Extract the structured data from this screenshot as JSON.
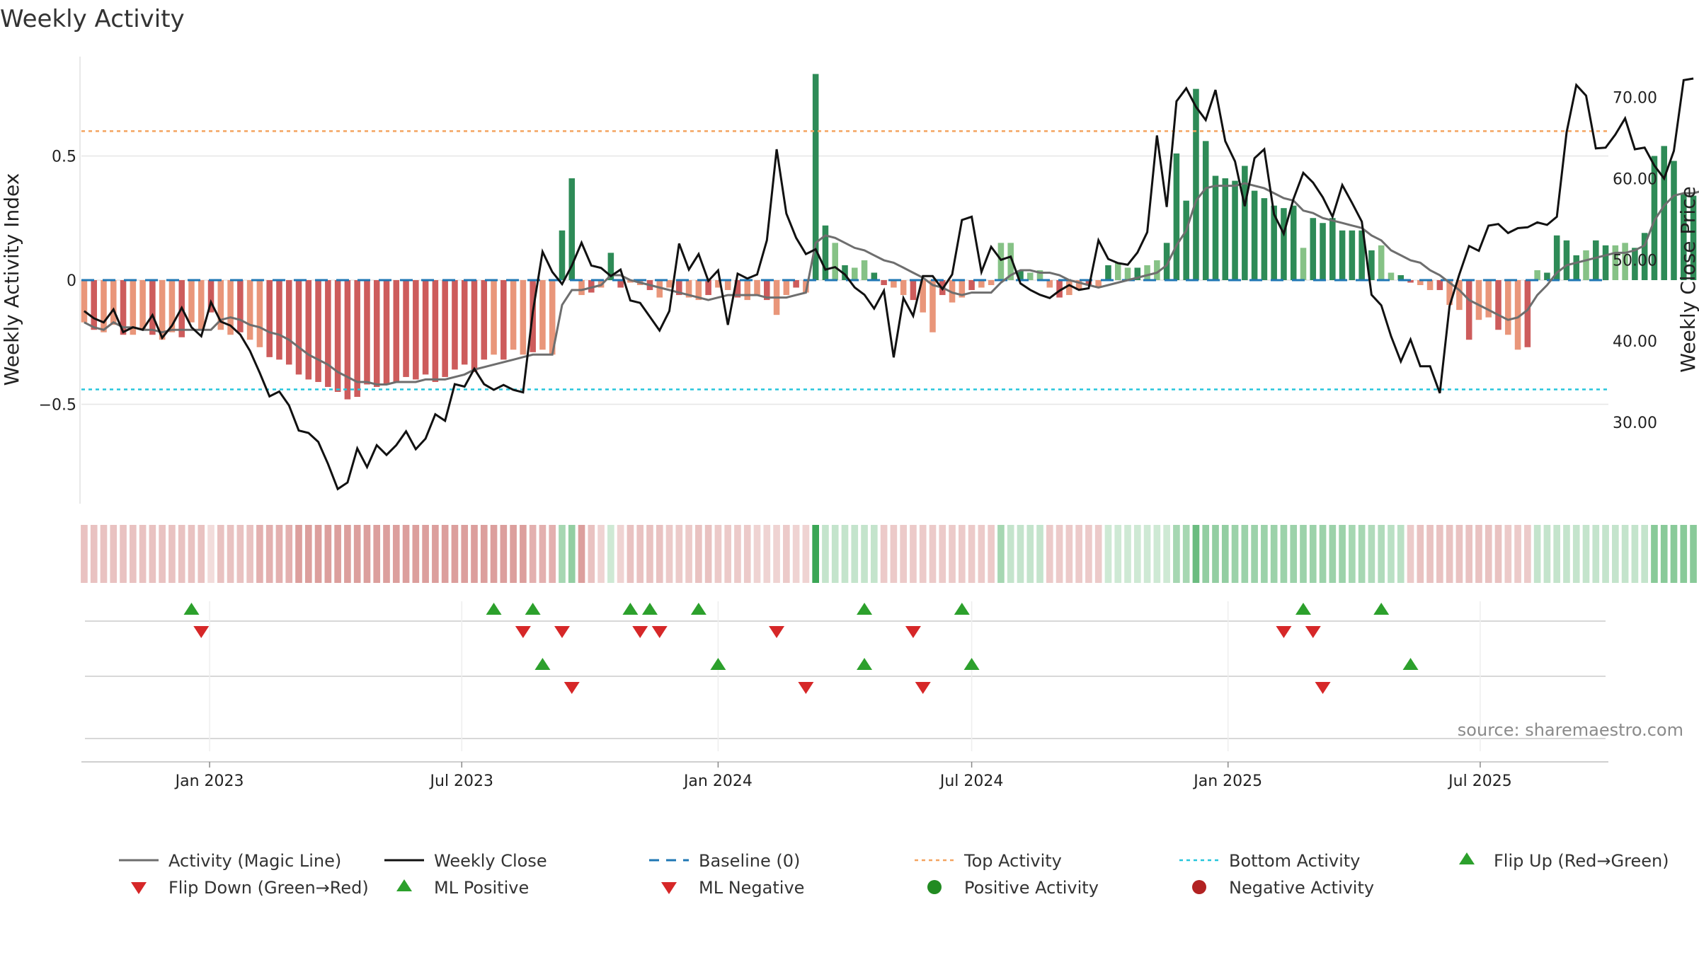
{
  "chart_data": {
    "type": "bar",
    "title": "Weekly Activity",
    "ylabel": "Weekly Activity Index",
    "y2label": "Weekly Close Price",
    "source": "source: sharemaestro.com",
    "ylim": [
      -0.9,
      0.9
    ],
    "y2lim": [
      20,
      75
    ],
    "yticks": [
      {
        "v": 0.5,
        "label": "0.5"
      },
      {
        "v": 0,
        "label": "0"
      },
      {
        "v": -0.5,
        "label": "−0.5"
      }
    ],
    "y2ticks": [
      {
        "v": 70,
        "label": "70.00"
      },
      {
        "v": 60,
        "label": "60.00"
      },
      {
        "v": 50,
        "label": "50.00"
      },
      {
        "v": 40,
        "label": "40.00"
      },
      {
        "v": 30,
        "label": "30.00"
      }
    ],
    "x_start": "2022-10-01",
    "x_end": "2025-10-01",
    "x_ticks": [
      {
        "date": "2023-01-01",
        "label": "Jan 2023"
      },
      {
        "date": "2023-07-01",
        "label": "Jul 2023"
      },
      {
        "date": "2024-01-01",
        "label": "Jan 2024"
      },
      {
        "date": "2024-07-01",
        "label": "Jul 2024"
      },
      {
        "date": "2025-01-01",
        "label": "Jan 2025"
      },
      {
        "date": "2025-07-01",
        "label": "Jul 2025"
      }
    ],
    "first_week": "2022-10-03",
    "top_activity": 0.6,
    "bottom_activity": -0.44,
    "baseline": 0,
    "activity": [
      -0.17,
      -0.2,
      -0.21,
      -0.18,
      -0.22,
      -0.22,
      -0.2,
      -0.22,
      -0.24,
      -0.21,
      -0.23,
      -0.17,
      -0.2,
      -0.13,
      -0.2,
      -0.22,
      -0.21,
      -0.24,
      -0.27,
      -0.31,
      -0.32,
      -0.34,
      -0.38,
      -0.4,
      -0.41,
      -0.43,
      -0.45,
      -0.48,
      -0.47,
      -0.42,
      -0.43,
      -0.42,
      -0.41,
      -0.39,
      -0.4,
      -0.38,
      -0.41,
      -0.39,
      -0.36,
      -0.34,
      -0.37,
      -0.32,
      -0.3,
      -0.32,
      -0.28,
      -0.3,
      -0.29,
      -0.28,
      -0.3,
      0.2,
      0.41,
      -0.06,
      -0.05,
      -0.03,
      0.11,
      -0.03,
      -0.01,
      -0.02,
      -0.04,
      -0.07,
      -0.03,
      -0.06,
      -0.07,
      -0.08,
      -0.06,
      -0.03,
      -0.04,
      -0.07,
      -0.08,
      -0.06,
      -0.08,
      -0.14,
      -0.06,
      -0.03,
      -0.05,
      0.83,
      0.22,
      0.15,
      0.06,
      0.05,
      0.08,
      0.03,
      -0.02,
      -0.03,
      -0.06,
      -0.08,
      -0.13,
      -0.21,
      -0.06,
      -0.09,
      -0.07,
      -0.04,
      -0.03,
      -0.02,
      0.15,
      0.15,
      0.04,
      0.03,
      0.04,
      -0.03,
      -0.07,
      -0.06,
      -0.04,
      -0.02,
      -0.03,
      0.06,
      0.07,
      0.05,
      0.05,
      0.06,
      0.08,
      0.15,
      0.51,
      0.32,
      0.77,
      0.56,
      0.42,
      0.41,
      0.4,
      0.46,
      0.36,
      0.33,
      0.3,
      0.29,
      0.3,
      0.13,
      0.25,
      0.23,
      0.25,
      0.2,
      0.2,
      0.2,
      0.12,
      0.14,
      0.03,
      0.02,
      -0.01,
      -0.02,
      -0.04,
      -0.04,
      -0.1,
      -0.12,
      -0.24,
      -0.16,
      -0.15,
      -0.2,
      -0.22,
      -0.28,
      -0.27,
      0.04,
      0.03,
      0.18,
      0.16,
      0.1,
      0.12,
      0.16,
      0.14,
      0.14,
      0.15,
      0.13,
      0.19,
      0.5,
      0.54,
      0.48,
      0.35,
      0.34,
      0.36,
      0.42,
      0.36,
      0.34,
      0.22,
      0.28,
      0.44,
      0.45
    ],
    "magic_line": [
      -0.17,
      -0.19,
      -0.2,
      -0.17,
      -0.19,
      -0.19,
      -0.2,
      -0.2,
      -0.21,
      -0.2,
      -0.2,
      -0.2,
      -0.2,
      -0.2,
      -0.16,
      -0.15,
      -0.16,
      -0.18,
      -0.19,
      -0.21,
      -0.22,
      -0.24,
      -0.27,
      -0.3,
      -0.32,
      -0.34,
      -0.37,
      -0.39,
      -0.41,
      -0.41,
      -0.42,
      -0.42,
      -0.41,
      -0.41,
      -0.41,
      -0.4,
      -0.4,
      -0.4,
      -0.39,
      -0.38,
      -0.36,
      -0.35,
      -0.34,
      -0.33,
      -0.32,
      -0.31,
      -0.3,
      -0.3,
      -0.3,
      -0.1,
      -0.04,
      -0.04,
      -0.03,
      -0.02,
      0.02,
      0.02,
      0.0,
      -0.01,
      -0.02,
      -0.03,
      -0.04,
      -0.05,
      -0.06,
      -0.07,
      -0.08,
      -0.07,
      -0.06,
      -0.06,
      -0.06,
      -0.06,
      -0.07,
      -0.07,
      -0.07,
      -0.06,
      -0.05,
      0.15,
      0.18,
      0.17,
      0.15,
      0.13,
      0.12,
      0.1,
      0.08,
      0.07,
      0.05,
      0.03,
      0.01,
      -0.02,
      -0.03,
      -0.05,
      -0.06,
      -0.05,
      -0.05,
      -0.05,
      -0.01,
      0.02,
      0.04,
      0.04,
      0.03,
      0.03,
      0.02,
      0.0,
      -0.01,
      -0.02,
      -0.03,
      -0.02,
      -0.01,
      0.0,
      0.01,
      0.02,
      0.03,
      0.06,
      0.14,
      0.2,
      0.32,
      0.37,
      0.38,
      0.38,
      0.38,
      0.39,
      0.38,
      0.37,
      0.35,
      0.33,
      0.32,
      0.28,
      0.27,
      0.25,
      0.24,
      0.23,
      0.22,
      0.21,
      0.18,
      0.16,
      0.12,
      0.1,
      0.08,
      0.07,
      0.04,
      0.02,
      -0.01,
      -0.04,
      -0.08,
      -0.1,
      -0.12,
      -0.14,
      -0.16,
      -0.15,
      -0.12,
      -0.06,
      -0.02,
      0.03,
      0.06,
      0.07,
      0.08,
      0.09,
      0.1,
      0.11,
      0.11,
      0.12,
      0.14,
      0.24,
      0.3,
      0.34,
      0.35,
      0.35,
      0.36,
      0.36,
      0.36,
      0.35,
      0.34,
      0.33,
      0.33,
      0.36
    ],
    "weekly_close": [
      43.7,
      42.8,
      42.3,
      43.9,
      41.1,
      41.7,
      41.4,
      43.2,
      40.4,
      41.9,
      44.1,
      41.7,
      40.6,
      44.8,
      42.4,
      41.9,
      40.8,
      38.8,
      36.1,
      33.2,
      33.8,
      32.1,
      29.0,
      28.7,
      27.6,
      24.9,
      21.8,
      22.6,
      26.8,
      24.5,
      27.2,
      26.0,
      27.2,
      28.9,
      26.7,
      28.0,
      31.0,
      30.2,
      34.7,
      34.4,
      36.6,
      34.7,
      34.0,
      34.6,
      34.0,
      33.7,
      43.6,
      51.0,
      48.5,
      47.0,
      49.3,
      52.1,
      49.3,
      49.0,
      48.0,
      48.8,
      45.0,
      44.7,
      43.0,
      41.3,
      43.7,
      52.0,
      48.8,
      50.7,
      47.4,
      48.7,
      42.0,
      48.3,
      47.7,
      48.2,
      52.4,
      63.6,
      55.7,
      52.7,
      50.7,
      51.3,
      48.8,
      49.1,
      48.2,
      46.6,
      45.7,
      44.0,
      46.2,
      38.0,
      45.3,
      43.1,
      48.0,
      48.0,
      46.4,
      48.2,
      54.9,
      55.3,
      48.5,
      51.6,
      50.0,
      50.4,
      47.1,
      46.3,
      45.7,
      45.3,
      46.2,
      46.9,
      46.3,
      46.5,
      52.4,
      50.1,
      49.6,
      49.4,
      50.9,
      53.4,
      65.3,
      56.5,
      69.5,
      71.1,
      68.8,
      67.2,
      70.9,
      64.6,
      62.1,
      56.6,
      62.5,
      63.6,
      55.6,
      53.2,
      57.5,
      60.7,
      59.5,
      57.7,
      55.3,
      59.2,
      57.0,
      54.7,
      45.7,
      44.4,
      40.6,
      37.5,
      40.2,
      36.9,
      36.9,
      33.6,
      44.3,
      48.2,
      51.7,
      51.1,
      54.2,
      54.4,
      53.3,
      53.9,
      54.0,
      54.6,
      54.3,
      55.3,
      65.7,
      71.5,
      70.2,
      63.7,
      63.8,
      65.4,
      67.4,
      63.6,
      63.8,
      61.6,
      60.0,
      63.4,
      72.1,
      72.3
    ],
    "strip_intensity": [
      0.35,
      0.35,
      0.35,
      0.35,
      0.35,
      0.35,
      0.35,
      0.35,
      0.35,
      0.35,
      0.35,
      0.35,
      0.35,
      0.2,
      0.35,
      0.35,
      0.35,
      0.35,
      0.45,
      0.45,
      0.45,
      0.45,
      0.55,
      0.55,
      0.55,
      0.55,
      0.55,
      0.55,
      0.55,
      0.55,
      0.55,
      0.55,
      0.55,
      0.55,
      0.55,
      0.55,
      0.55,
      0.55,
      0.55,
      0.55,
      0.55,
      0.55,
      0.55,
      0.55,
      0.55,
      0.55,
      0.45,
      0.45,
      0.45,
      0.45,
      0.55,
      0.55,
      0.35,
      0.25,
      0.25,
      0.25,
      0.35,
      0.35,
      0.35,
      0.35,
      0.3,
      0.3,
      0.3,
      0.35,
      0.35,
      0.3,
      0.3,
      0.3,
      0.3,
      0.25,
      0.25,
      0.25,
      0.3,
      0.25,
      0.25,
      1.0,
      0.3,
      0.3,
      0.3,
      0.3,
      0.3,
      0.3,
      0.3,
      0.3,
      0.3,
      0.3,
      0.3,
      0.3,
      0.3,
      0.3,
      0.3,
      0.3,
      0.3,
      0.3,
      0.45,
      0.3,
      0.3,
      0.3,
      0.3,
      0.3,
      0.3,
      0.3,
      0.3,
      0.3,
      0.3,
      0.25,
      0.25,
      0.25,
      0.25,
      0.25,
      0.25,
      0.25,
      0.45,
      0.45,
      0.75,
      0.55,
      0.55,
      0.55,
      0.5,
      0.5,
      0.5,
      0.5,
      0.5,
      0.5,
      0.5,
      0.5,
      0.5,
      0.5,
      0.5,
      0.5,
      0.45,
      0.45,
      0.4,
      0.4,
      0.35,
      0.35,
      0.3,
      0.35,
      0.35,
      0.35,
      0.35,
      0.35,
      0.35,
      0.35,
      0.35,
      0.35,
      0.3,
      0.3,
      0.3,
      0.3,
      0.3,
      0.3,
      0.3,
      0.3,
      0.3,
      0.3,
      0.3,
      0.3,
      0.3,
      0.3,
      0.3,
      0.6,
      0.6,
      0.6,
      0.6,
      0.6,
      0.6,
      0.6,
      0.6,
      0.6,
      0.6,
      0.5,
      0.5,
      0.5,
      0.5
    ],
    "flip_up": [
      "2022-12-19",
      "2023-07-24",
      "2023-08-21",
      "2023-10-30",
      "2023-11-13",
      "2023-12-18",
      "2024-04-15",
      "2024-06-24",
      "2025-02-24",
      "2025-04-21"
    ],
    "flip_down": [
      "2022-12-26",
      "2023-08-14",
      "2023-09-11",
      "2023-11-06",
      "2023-11-20",
      "2024-02-12",
      "2024-05-20",
      "2025-02-10",
      "2025-03-03"
    ],
    "ml_positive": [
      "2023-08-28",
      "2024-01-01",
      "2024-04-15",
      "2024-07-01",
      "2025-05-12"
    ],
    "ml_negative": [
      "2023-09-18",
      "2024-03-04",
      "2024-05-27",
      "2025-03-10"
    ],
    "legend": [
      "Activity (Magic Line)",
      "Weekly Close",
      "Baseline (0)",
      "Top Activity",
      "Bottom Activity",
      "Flip Up (Red→Green)",
      "Flip Down (Green→Red)",
      "ML Positive",
      "ML Negative",
      "Positive Activity",
      "Negative Activity"
    ],
    "colors": {
      "pos_strong": "#2e8b57",
      "pos_light": "#86c286",
      "neg_strong": "#cd5c5c",
      "neg_light": "#e9967a",
      "magic_line": "#6e6e6e",
      "close": "#111111",
      "baseline": "#1f77b4",
      "top": "#f4a460",
      "bottom": "#27c6dc",
      "flip_up": "#2ca02c",
      "flip_down": "#d62728",
      "positive_activity": "#228b22",
      "negative_activity": "#b22222"
    }
  }
}
